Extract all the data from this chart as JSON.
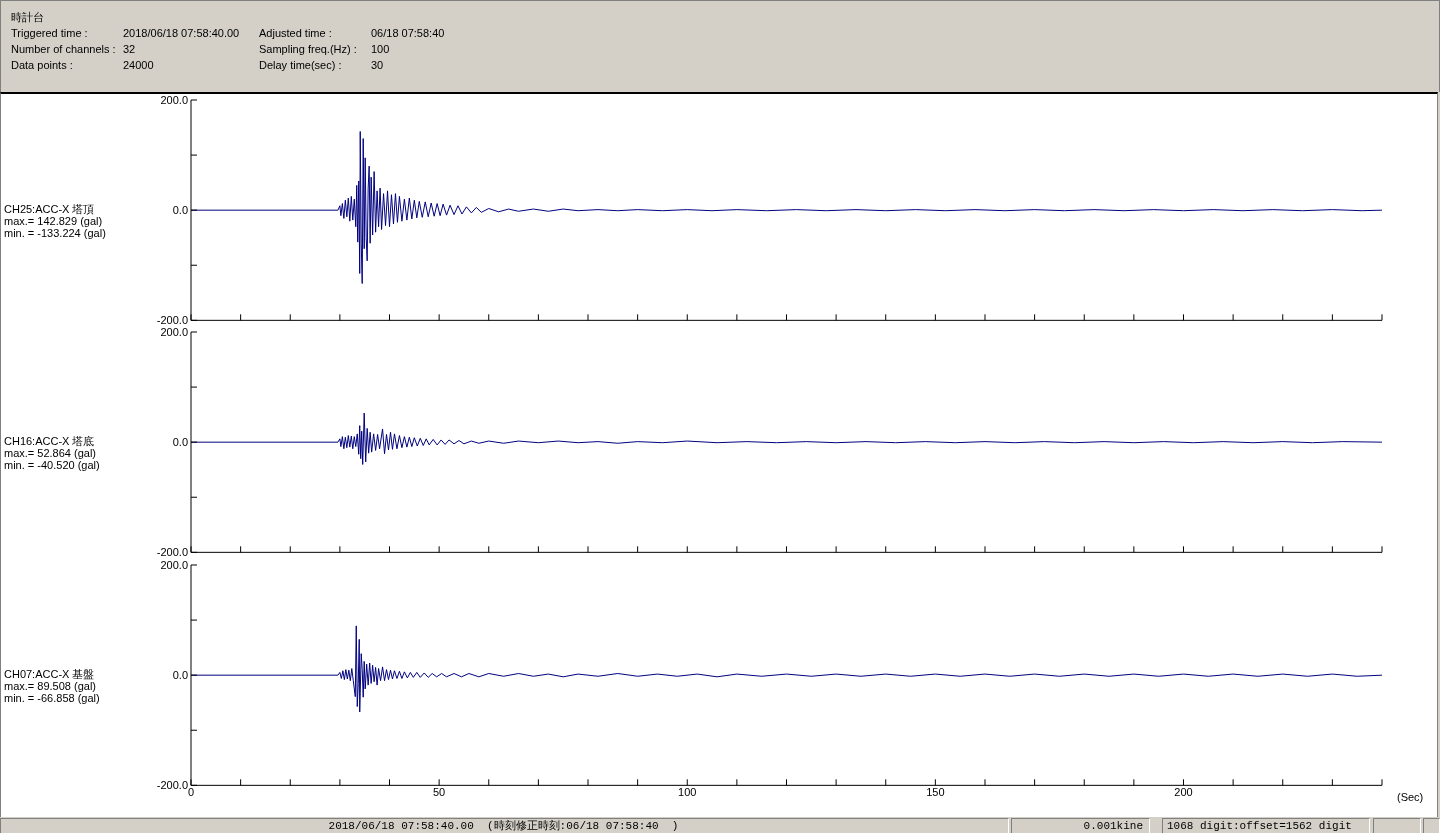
{
  "chart_data": [
    {
      "type": "other",
      "title": "時計台",
      "annotations": [
        "Triggered time :",
        "2018/06/18 07:58:40.00",
        "Adjusted time :",
        "06/18 07:58:40",
        "Number of channels :",
        "32",
        "Sampling freq.(Hz) :",
        "100",
        "Data points :",
        "24000",
        "Delay time(sec) :",
        "30"
      ]
    },
    {
      "type": "line",
      "ylabel": "CH25:ACC-X 塔頂",
      "annotations": [
        "max.= 142.829 (gal)",
        "min. = -133.224 (gal)"
      ],
      "tick_labels": "y",
      "xlim": [
        0,
        240
      ],
      "xticks": [
        0,
        {
          "value": 10,
          "label": null
        },
        {
          "value": 20,
          "label": null
        },
        {
          "value": 30,
          "label": null
        },
        {
          "value": 40,
          "label": null
        },
        50,
        {
          "value": 60,
          "label": null
        },
        {
          "value": 70,
          "label": null
        },
        {
          "value": 80,
          "label": null
        },
        {
          "value": 90,
          "label": null
        },
        100,
        {
          "value": 110,
          "label": null
        },
        {
          "value": 120,
          "label": null
        },
        {
          "value": 130,
          "label": null
        },
        {
          "value": 140,
          "label": null
        },
        150,
        {
          "value": 160,
          "label": null
        },
        {
          "value": 170,
          "label": null
        },
        {
          "value": 180,
          "label": null
        },
        {
          "value": 190,
          "label": null
        },
        200,
        {
          "value": 210,
          "label": null
        },
        {
          "value": 220,
          "label": null
        },
        {
          "value": 230,
          "label": null
        },
        {
          "value": 240,
          "label": null
        }
      ],
      "ylim": [
        -200,
        200
      ],
      "yticks": [
        {
          "value": -200,
          "label": "-200.0"
        },
        {
          "value": -100,
          "label": null
        },
        {
          "value": 0,
          "label": "0.0"
        },
        {
          "value": 100,
          "label": null
        },
        {
          "value": 200,
          "label": "200.0"
        }
      ],
      "series": [
        {
          "color": "#000080",
          "x": [
            0,
            29.6,
            30,
            30.2,
            30.5,
            30.8,
            31.1,
            31.4,
            31.7,
            32,
            32.3,
            32.6,
            32.9,
            33.2,
            33.4,
            33.6,
            33.8,
            34,
            34.1,
            34.3,
            34.5,
            34.7,
            34.9,
            35.1,
            35.3,
            35.5,
            35.7,
            35.9,
            36.1,
            36.3,
            36.6,
            36.9,
            37.2,
            37.5,
            37.8,
            38.1,
            38.4,
            38.8,
            39.2,
            39.6,
            40,
            40.4,
            40.8,
            41.2,
            41.6,
            42,
            42.5,
            43,
            43.5,
            44,
            44.5,
            45,
            45.5,
            46,
            46.6,
            47.2,
            47.8,
            48.4,
            49,
            49.6,
            50.2,
            50.8,
            51.5,
            52.2,
            53,
            53.8,
            54.6,
            55.5,
            56.5,
            57.5,
            58.5,
            60,
            62,
            64,
            66,
            69,
            72,
            75,
            78,
            82,
            86,
            90,
            95,
            100,
            105,
            110,
            116,
            122,
            128,
            134,
            140,
            146,
            152,
            158,
            164,
            170,
            176,
            182,
            188,
            194,
            200,
            206,
            212,
            218,
            224,
            230,
            236,
            240
          ],
          "values": [
            0,
            0,
            8,
            -10,
            12,
            -15,
            18,
            -12,
            22,
            -20,
            25,
            -18,
            20,
            -30,
            45,
            -58,
            53,
            -115,
            142.829,
            -60,
            -133.224,
            130,
            -70,
            95,
            -50,
            -92,
            40,
            80,
            -60,
            60,
            -45,
            70,
            -40,
            35,
            -30,
            40,
            -35,
            30,
            -28,
            35,
            -30,
            28,
            -25,
            30,
            -22,
            25,
            -20,
            20,
            -18,
            22,
            -16,
            18,
            -14,
            16,
            -13,
            15,
            -12,
            13,
            -11,
            12,
            -10,
            11,
            -9,
            9,
            -8,
            8,
            -7,
            6,
            -5,
            5,
            -4,
            3,
            -3,
            2,
            -2,
            2,
            -2,
            2,
            -1,
            1,
            -1,
            1,
            -1,
            1,
            -1,
            1,
            -1,
            1,
            -1,
            1,
            -1,
            1,
            -1,
            1,
            -1,
            1,
            -1,
            1,
            -1,
            1,
            -1,
            1,
            -1,
            1,
            -1,
            1,
            -1,
            0
          ]
        }
      ]
    },
    {
      "type": "line",
      "ylabel": "CH16:ACC-X 塔底",
      "annotations": [
        "max.= 52.864 (gal)",
        "min. = -40.520 (gal)"
      ],
      "tick_labels": "y",
      "xlim": [
        0,
        240
      ],
      "xticks": [
        0,
        {
          "value": 10,
          "label": null
        },
        {
          "value": 20,
          "label": null
        },
        {
          "value": 30,
          "label": null
        },
        {
          "value": 40,
          "label": null
        },
        50,
        {
          "value": 60,
          "label": null
        },
        {
          "value": 70,
          "label": null
        },
        {
          "value": 80,
          "label": null
        },
        {
          "value": 90,
          "label": null
        },
        100,
        {
          "value": 110,
          "label": null
        },
        {
          "value": 120,
          "label": null
        },
        {
          "value": 130,
          "label": null
        },
        {
          "value": 140,
          "label": null
        },
        150,
        {
          "value": 160,
          "label": null
        },
        {
          "value": 170,
          "label": null
        },
        {
          "value": 180,
          "label": null
        },
        {
          "value": 190,
          "label": null
        },
        200,
        {
          "value": 210,
          "label": null
        },
        {
          "value": 220,
          "label": null
        },
        {
          "value": 230,
          "label": null
        },
        {
          "value": 240,
          "label": null
        }
      ],
      "ylim": [
        -200,
        200
      ],
      "yticks": [
        {
          "value": -200,
          "label": "-200.0"
        },
        {
          "value": -100,
          "label": null
        },
        {
          "value": 0,
          "label": "0.0"
        },
        {
          "value": 100,
          "label": null
        },
        {
          "value": 200,
          "label": "200.0"
        }
      ],
      "series": [
        {
          "color": "#000080",
          "x": [
            0,
            29.6,
            30,
            30.2,
            30.5,
            30.8,
            31.1,
            31.4,
            31.7,
            32,
            32.3,
            32.6,
            32.9,
            33.2,
            33.5,
            33.8,
            34,
            34.2,
            34.4,
            34.6,
            34.9,
            35.2,
            35.5,
            35.8,
            36.1,
            36.4,
            36.8,
            37.2,
            37.6,
            38,
            38.6,
            39,
            39.4,
            39.8,
            40.2,
            40.6,
            41,
            41.5,
            42,
            42.5,
            43,
            43.5,
            44,
            44.5,
            45,
            45.6,
            46.2,
            46.8,
            47.4,
            48,
            48.8,
            49.6,
            50.4,
            51.2,
            52,
            53,
            54,
            55,
            56.5,
            58,
            60,
            63,
            66,
            70,
            74,
            78,
            82,
            86,
            90,
            95,
            100,
            106,
            112,
            118,
            124,
            130,
            136,
            142,
            148,
            154,
            160,
            166,
            172,
            178,
            184,
            190,
            196,
            202,
            208,
            214,
            220,
            226,
            232,
            240
          ],
          "values": [
            0,
            0,
            6,
            -8,
            10,
            -12,
            9,
            -10,
            12,
            -9,
            11,
            -12,
            10,
            -8,
            15,
            -22,
            30,
            -30,
            20,
            -40.52,
            52.864,
            -36,
            25,
            -20,
            18,
            -18,
            15,
            -15,
            14,
            -12,
            24,
            -21,
            14,
            -14,
            18,
            -13,
            15,
            -12,
            12,
            -10,
            10,
            -9,
            9,
            -8,
            8,
            -7,
            7,
            -6,
            6,
            -5,
            5,
            -5,
            4,
            -4,
            4,
            -3,
            3,
            -3,
            2,
            -2,
            2,
            -2,
            2,
            -1,
            2,
            -1,
            1,
            -2,
            1,
            -1,
            2,
            -1,
            1,
            -1,
            1,
            -1,
            1,
            -1,
            1,
            -1,
            1,
            -1,
            1,
            -1,
            1,
            -1,
            1,
            -1,
            1,
            -1,
            1,
            -1,
            1,
            0
          ]
        }
      ]
    },
    {
      "type": "line",
      "ylabel": "CH07:ACC-X 基盤",
      "annotations": [
        "max.= 89.508 (gal)",
        "min. = -66.858 (gal)"
      ],
      "xlabel": "(Sec)",
      "xlim": [
        0,
        240
      ],
      "xticks": [
        0,
        {
          "value": 10,
          "label": null
        },
        {
          "value": 20,
          "label": null
        },
        {
          "value": 30,
          "label": null
        },
        {
          "value": 40,
          "label": null
        },
        50,
        {
          "value": 60,
          "label": null
        },
        {
          "value": 70,
          "label": null
        },
        {
          "value": 80,
          "label": null
        },
        {
          "value": 90,
          "label": null
        },
        100,
        {
          "value": 110,
          "label": null
        },
        {
          "value": 120,
          "label": null
        },
        {
          "value": 130,
          "label": null
        },
        {
          "value": 140,
          "label": null
        },
        150,
        {
          "value": 160,
          "label": null
        },
        {
          "value": 170,
          "label": null
        },
        {
          "value": 180,
          "label": null
        },
        {
          "value": 190,
          "label": null
        },
        200,
        {
          "value": 210,
          "label": null
        },
        {
          "value": 220,
          "label": null
        },
        {
          "value": 230,
          "label": null
        },
        {
          "value": 240,
          "label": null
        }
      ],
      "ylim": [
        -200,
        200
      ],
      "yticks": [
        {
          "value": -200,
          "label": "-200.0"
        },
        {
          "value": -100,
          "label": null
        },
        {
          "value": 0,
          "label": "0.0"
        },
        {
          "value": 100,
          "label": null
        },
        {
          "value": 200,
          "label": "200.0"
        }
      ],
      "series": [
        {
          "color": "#000080",
          "x": [
            0,
            29.6,
            30,
            30.3,
            30.6,
            30.9,
            31.2,
            31.5,
            31.8,
            32.1,
            32.4,
            32.7,
            33.1,
            33.3,
            33.5,
            33.7,
            33.9,
            34,
            34.3,
            34.5,
            34.7,
            34.9,
            35.1,
            35.4,
            35.7,
            36,
            36.3,
            36.6,
            36.9,
            37.2,
            37.5,
            37.8,
            38.2,
            38.6,
            39,
            39.4,
            39.8,
            40.2,
            40.6,
            41,
            41.5,
            42,
            42.5,
            43,
            43.6,
            44.2,
            44.8,
            45.5,
            46.2,
            47,
            47.8,
            48.6,
            49.5,
            50.5,
            51.5,
            53,
            54.5,
            56,
            58,
            60,
            63,
            66,
            69,
            72,
            75,
            78,
            82,
            86,
            90,
            94,
            98,
            102,
            106,
            110,
            115,
            120,
            125,
            130,
            135,
            140,
            145,
            150,
            155,
            160,
            165,
            170,
            175,
            180,
            185,
            190,
            195,
            200,
            205,
            210,
            215,
            220,
            225,
            230,
            235,
            240
          ],
          "values": [
            0,
            0,
            5,
            -6,
            8,
            -8,
            10,
            -7,
            9,
            -10,
            12,
            -10,
            -39,
            89.508,
            -57,
            -15,
            65,
            -66.858,
            39,
            10,
            -40,
            25,
            -25,
            20,
            -18,
            22,
            -15,
            18,
            -12,
            14,
            -18,
            12,
            -10,
            15,
            -10,
            10,
            -8,
            9,
            -7,
            8,
            -6,
            7,
            -6,
            6,
            -5,
            5,
            -4,
            5,
            -4,
            4,
            -4,
            3,
            -3,
            3,
            -3,
            3,
            -3,
            3,
            -3,
            3,
            -2,
            3,
            -2,
            2,
            -3,
            2,
            -2,
            3,
            -2,
            2,
            -2,
            2,
            -3,
            2,
            -2,
            2,
            -2,
            2,
            -2,
            2,
            -2,
            2,
            -2,
            2,
            -2,
            2,
            -2,
            2,
            -2,
            2,
            -2,
            2,
            -2,
            2,
            -2,
            2,
            -2,
            2,
            -2,
            0
          ]
        }
      ]
    },
    {
      "type": "other",
      "annotations": [
        "2018/06/18 07:58:40.00  (時刻修正時刻:06/18 07:58:40  )",
        "0.001kine",
        "1068 digit:offset=1562 digit"
      ]
    }
  ]
}
